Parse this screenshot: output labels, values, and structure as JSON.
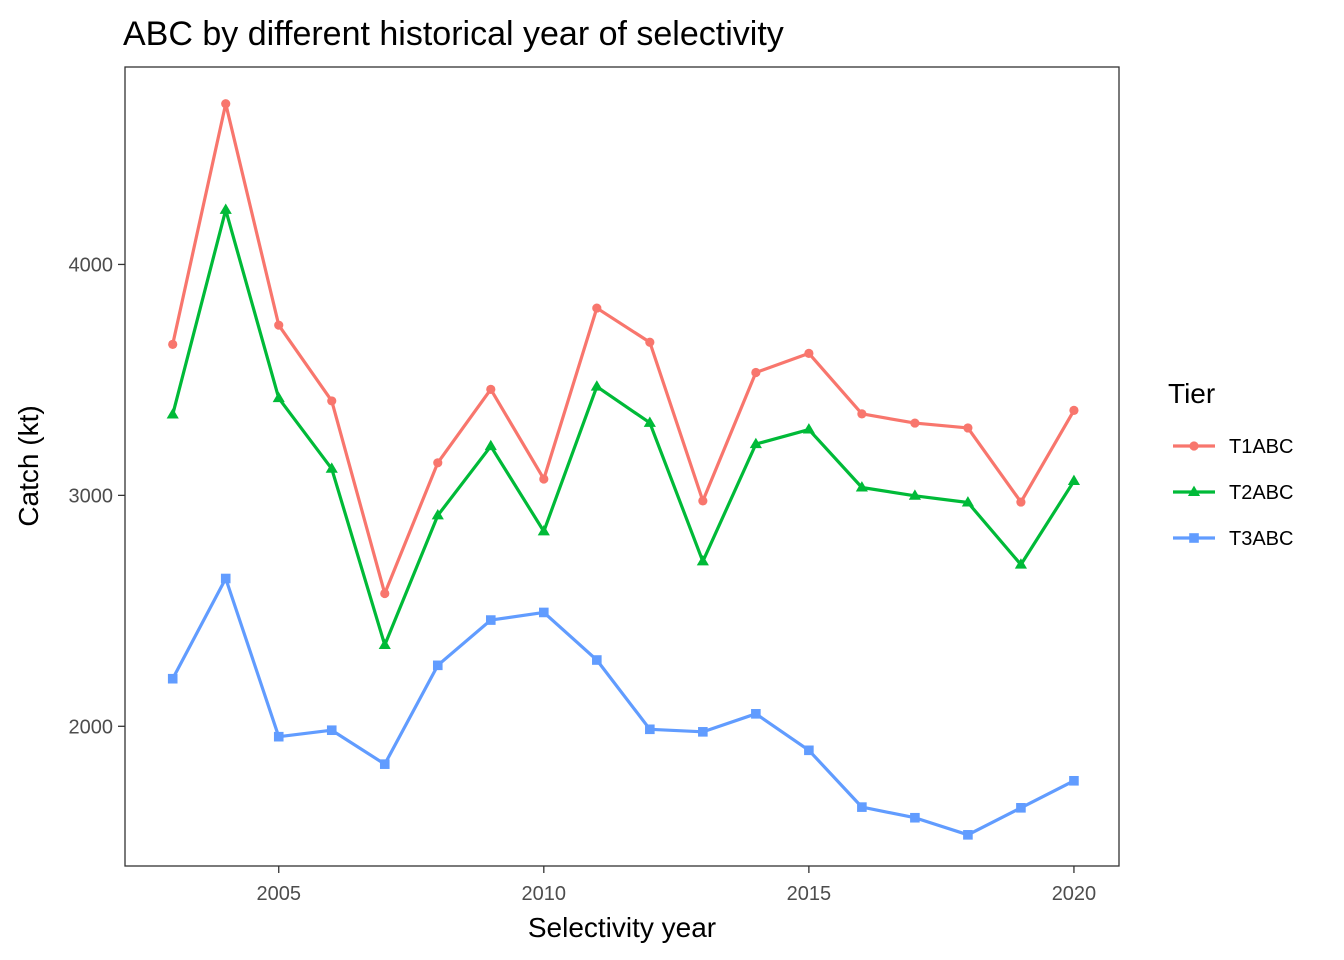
{
  "chart_data": {
    "type": "line",
    "title": "ABC by different historical year of selectivity",
    "xlabel": "Selectivity year",
    "ylabel": "Catch (kt)",
    "xlim": [
      2002.1,
      2020.85
    ],
    "ylim": [
      1395,
      4855
    ],
    "x_ticks": [
      2005,
      2010,
      2015,
      2020
    ],
    "y_ticks": [
      2000,
      3000,
      4000
    ],
    "grid": false,
    "legend": {
      "title": "Tier",
      "placement": "right"
    },
    "x": [
      2003,
      2004,
      2005,
      2006,
      2007,
      2008,
      2009,
      2010,
      2011,
      2012,
      2013,
      2014,
      2015,
      2016,
      2017,
      2018,
      2019,
      2020
    ],
    "series": [
      {
        "name": "T1ABC",
        "color": "#F8766D",
        "marker": "circle",
        "values": [
          3654,
          4696,
          3737,
          3409,
          2575,
          3141,
          3459,
          3071,
          3811,
          3663,
          2976,
          3532,
          3615,
          3353,
          3313,
          3292,
          2971,
          3368
        ]
      },
      {
        "name": "T2ABC",
        "color": "#00BA38",
        "marker": "triangle",
        "values": [
          3350,
          4236,
          3421,
          3115,
          2352,
          2913,
          3213,
          2844,
          3471,
          3314,
          2714,
          3222,
          3285,
          3034,
          2998,
          2969,
          2700,
          3062
        ]
      },
      {
        "name": "T3ABC",
        "color": "#619CFF",
        "marker": "square",
        "values": [
          2206,
          2640,
          1955,
          1983,
          1836,
          2264,
          2460,
          2493,
          2287,
          1987,
          1976,
          2054,
          1896,
          1650,
          1604,
          1530,
          1647,
          1764
        ]
      }
    ]
  }
}
